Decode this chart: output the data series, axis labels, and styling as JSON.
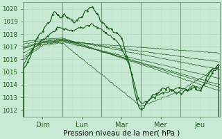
{
  "xlabel": "Pression niveau de la mer( hPa )",
  "ylim": [
    1011.5,
    1020.5
  ],
  "xlim": [
    0,
    120
  ],
  "yticks": [
    1012,
    1013,
    1014,
    1015,
    1016,
    1017,
    1018,
    1019,
    1020
  ],
  "ytick_labels": [
    "1012",
    "1013",
    "1014",
    "1015",
    "1016",
    "1017",
    "1018",
    "1019",
    "1020"
  ],
  "day_sep_ticks": [
    24,
    48,
    72,
    96
  ],
  "day_label_ticks": [
    12,
    36,
    60,
    84,
    108
  ],
  "day_labels": [
    "Dim",
    "Lun",
    "Mar",
    "Mer",
    "Jeu"
  ],
  "bg_color": "#c8ead4",
  "grid_major_color": "#b0d8bc",
  "grid_minor_color": "#c0e0cc",
  "line_color": "#1a5c1a",
  "sep_color": "#7a9a7a"
}
